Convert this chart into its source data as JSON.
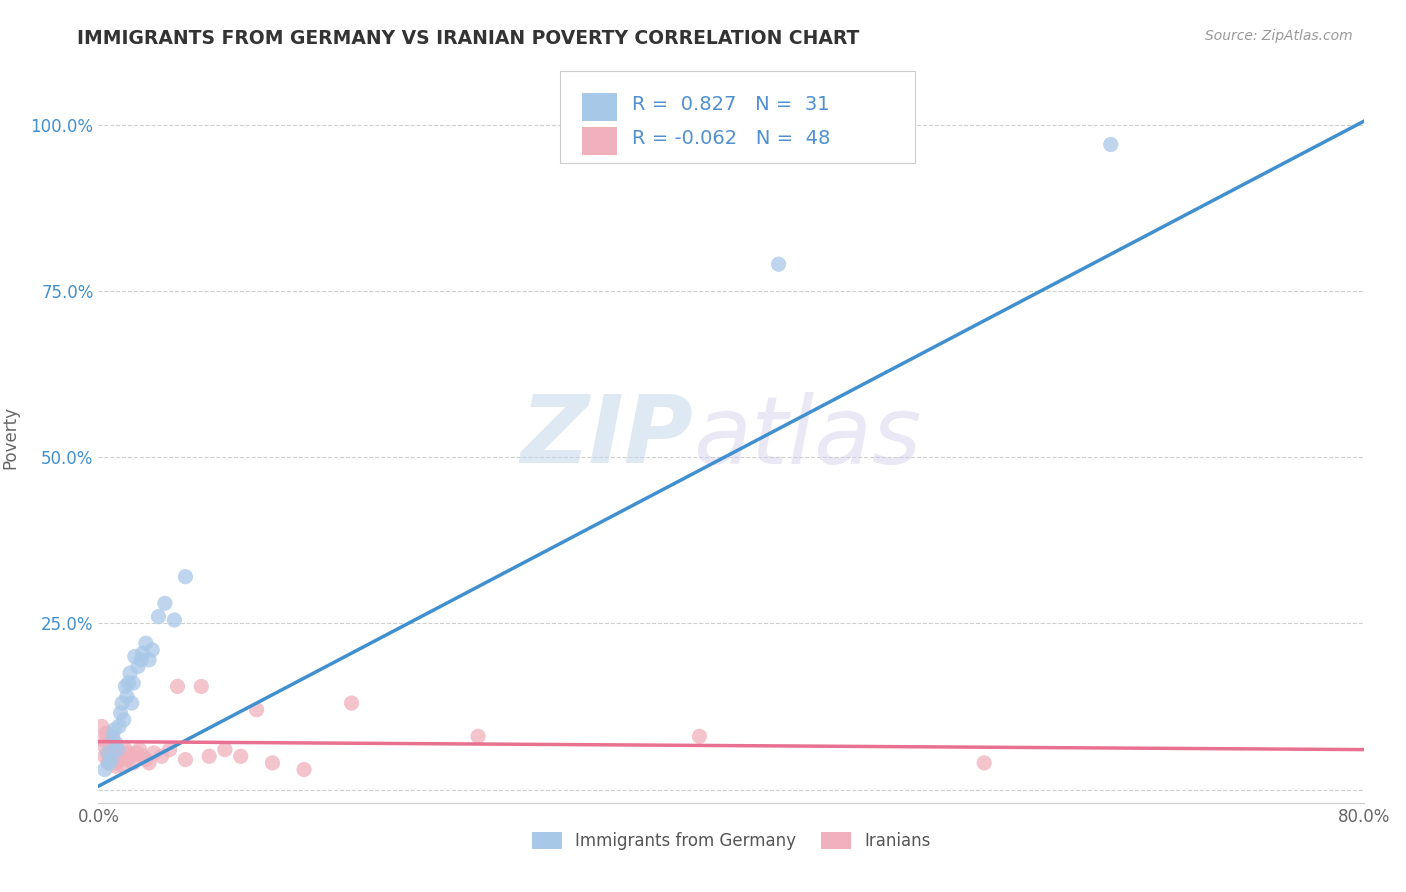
{
  "title": "IMMIGRANTS FROM GERMANY VS IRANIAN POVERTY CORRELATION CHART",
  "source": "Source: ZipAtlas.com",
  "ylabel": "Poverty",
  "xlim": [
    0.0,
    0.8
  ],
  "ylim": [
    -0.02,
    1.08
  ],
  "watermark_zip": "ZIP",
  "watermark_atlas": "atlas",
  "legend_R1": "0.827",
  "legend_N1": "31",
  "legend_R2": "-0.062",
  "legend_N2": "48",
  "legend_label1": "Immigrants from Germany",
  "legend_label2": "Iranians",
  "blue_color": "#a8c8e8",
  "pink_color": "#f0b0bc",
  "line_blue": "#4090d0",
  "line_pink": "#e87090",
  "grid_color": "#bbbbbb",
  "title_color": "#333333",
  "legend_text_color": "#5090d0",
  "background_color": "#ffffff",
  "scatter_blue": [
    [
      0.004,
      0.03
    ],
    [
      0.006,
      0.055
    ],
    [
      0.007,
      0.04
    ],
    [
      0.008,
      0.045
    ],
    [
      0.009,
      0.08
    ],
    [
      0.01,
      0.09
    ],
    [
      0.011,
      0.07
    ],
    [
      0.012,
      0.06
    ],
    [
      0.013,
      0.095
    ],
    [
      0.014,
      0.115
    ],
    [
      0.015,
      0.13
    ],
    [
      0.016,
      0.105
    ],
    [
      0.017,
      0.155
    ],
    [
      0.018,
      0.14
    ],
    [
      0.019,
      0.16
    ],
    [
      0.02,
      0.175
    ],
    [
      0.021,
      0.13
    ],
    [
      0.022,
      0.16
    ],
    [
      0.023,
      0.2
    ],
    [
      0.025,
      0.185
    ],
    [
      0.027,
      0.195
    ],
    [
      0.028,
      0.205
    ],
    [
      0.03,
      0.22
    ],
    [
      0.032,
      0.195
    ],
    [
      0.034,
      0.21
    ],
    [
      0.038,
      0.26
    ],
    [
      0.042,
      0.28
    ],
    [
      0.048,
      0.255
    ],
    [
      0.055,
      0.32
    ],
    [
      0.43,
      0.79
    ],
    [
      0.64,
      0.97
    ]
  ],
  "scatter_pink": [
    [
      0.002,
      0.095
    ],
    [
      0.003,
      0.075
    ],
    [
      0.004,
      0.065
    ],
    [
      0.004,
      0.05
    ],
    [
      0.005,
      0.085
    ],
    [
      0.006,
      0.055
    ],
    [
      0.006,
      0.04
    ],
    [
      0.007,
      0.07
    ],
    [
      0.007,
      0.045
    ],
    [
      0.008,
      0.065
    ],
    [
      0.008,
      0.05
    ],
    [
      0.009,
      0.075
    ],
    [
      0.009,
      0.055
    ],
    [
      0.01,
      0.06
    ],
    [
      0.01,
      0.04
    ],
    [
      0.011,
      0.05
    ],
    [
      0.011,
      0.035
    ],
    [
      0.012,
      0.06
    ],
    [
      0.013,
      0.045
    ],
    [
      0.014,
      0.055
    ],
    [
      0.015,
      0.05
    ],
    [
      0.016,
      0.035
    ],
    [
      0.017,
      0.06
    ],
    [
      0.018,
      0.045
    ],
    [
      0.019,
      0.055
    ],
    [
      0.02,
      0.05
    ],
    [
      0.022,
      0.04
    ],
    [
      0.024,
      0.055
    ],
    [
      0.026,
      0.06
    ],
    [
      0.028,
      0.05
    ],
    [
      0.03,
      0.045
    ],
    [
      0.032,
      0.04
    ],
    [
      0.035,
      0.055
    ],
    [
      0.04,
      0.05
    ],
    [
      0.045,
      0.06
    ],
    [
      0.05,
      0.155
    ],
    [
      0.055,
      0.045
    ],
    [
      0.065,
      0.155
    ],
    [
      0.07,
      0.05
    ],
    [
      0.08,
      0.06
    ],
    [
      0.09,
      0.05
    ],
    [
      0.1,
      0.12
    ],
    [
      0.11,
      0.04
    ],
    [
      0.13,
      0.03
    ],
    [
      0.16,
      0.13
    ],
    [
      0.24,
      0.08
    ],
    [
      0.38,
      0.08
    ],
    [
      0.56,
      0.04
    ]
  ],
  "blue_line_x0": 0.0,
  "blue_line_y0": 0.005,
  "blue_line_x1": 0.8,
  "blue_line_y1": 1.005,
  "pink_line_x0": 0.0,
  "pink_line_y0": 0.072,
  "pink_line_x1": 0.8,
  "pink_line_y1": 0.06
}
